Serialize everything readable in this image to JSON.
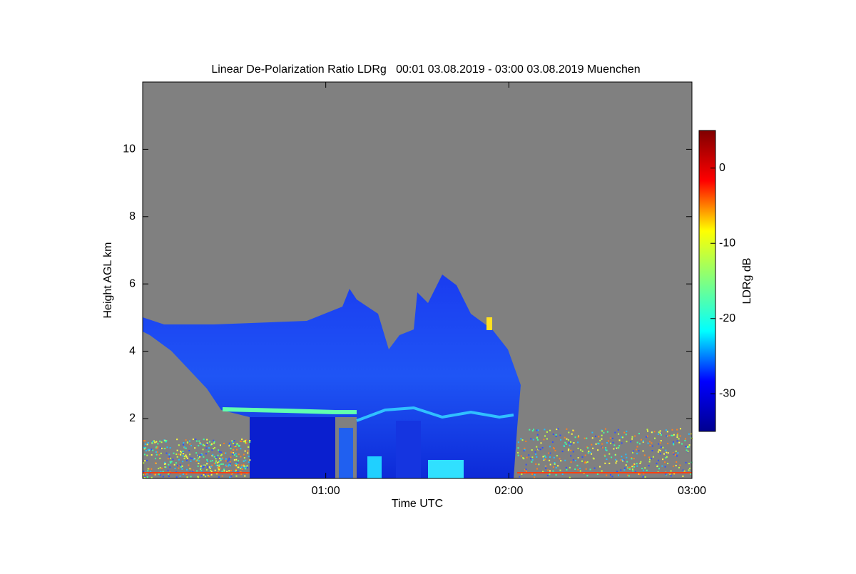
{
  "chart_data": {
    "type": "heatmap",
    "title": "Linear De-Polarization Ratio LDRg   00:01 03.08.2019 - 03:00 03.08.2019 Muenchen",
    "x_label": "Time UTC",
    "y_label": "Height AGL km",
    "xlim": [
      0,
      180
    ],
    "xticks": [
      {
        "value": 60,
        "label": "01:00"
      },
      {
        "value": 120,
        "label": "02:00"
      },
      {
        "value": 180,
        "label": "03:00"
      }
    ],
    "ylim": [
      0.22,
      12
    ],
    "yticks": [
      2,
      4,
      6,
      8,
      10
    ],
    "colorbar": {
      "label": "LDRg dB",
      "lim": [
        -35,
        5
      ],
      "ticks": [
        -30,
        -20,
        -10,
        0
      ],
      "colormap": "jet"
    }
  }
}
